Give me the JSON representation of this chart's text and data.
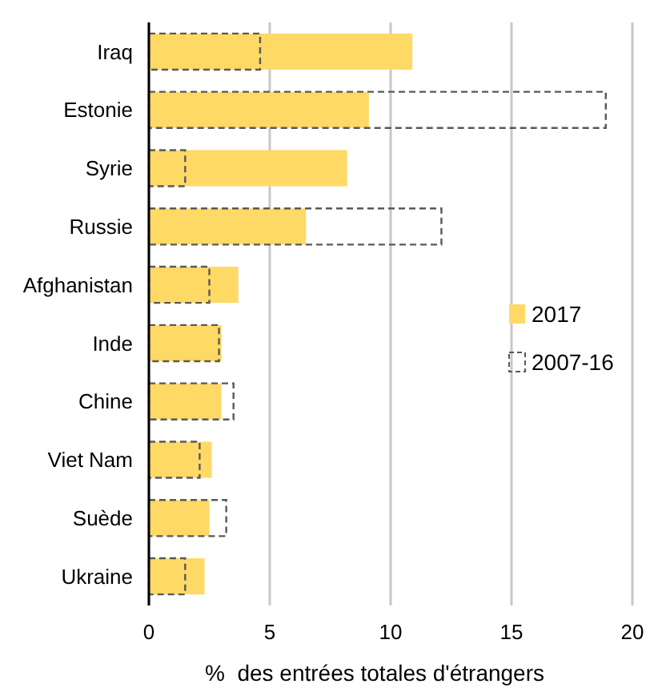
{
  "chart_data": {
    "type": "bar",
    "orientation": "horizontal",
    "xlabel": "%  des entrées totales d'étrangers",
    "categories": [
      "Iraq",
      "Estonie",
      "Syrie",
      "Russie",
      "Afghanistan",
      "Inde",
      "Chine",
      "Viet Nam",
      "Suède",
      "Ukraine"
    ],
    "series": [
      {
        "name": "2017",
        "color": "#ffd966",
        "values": [
          10.9,
          9.1,
          8.2,
          6.5,
          3.7,
          3.0,
          3.0,
          2.6,
          2.5,
          2.3
        ]
      },
      {
        "name": "2007-16",
        "color": "#595959",
        "line_style": "dashed",
        "values": [
          4.6,
          18.9,
          1.5,
          12.1,
          2.5,
          2.9,
          3.5,
          2.1,
          3.2,
          1.5
        ]
      }
    ],
    "xlim": [
      0,
      20
    ],
    "xticks": [
      0,
      5,
      10,
      15,
      20
    ],
    "grid": "x",
    "legend": "right"
  }
}
